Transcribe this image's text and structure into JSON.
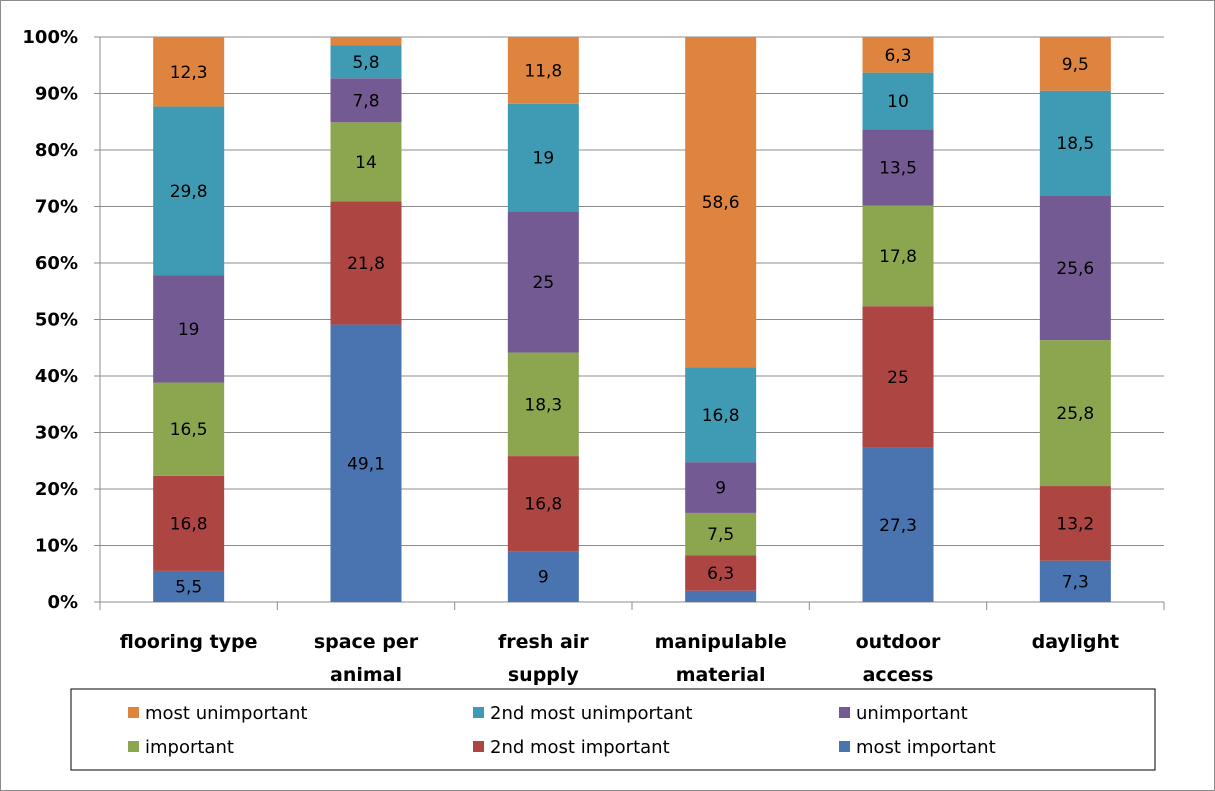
{
  "chart_data": {
    "type": "bar",
    "stacked": true,
    "percent_stacked": true,
    "title": "",
    "xlabel": "",
    "ylabel": "",
    "ylim": [
      0,
      100
    ],
    "y_ticks": [
      "0%",
      "10%",
      "20%",
      "30%",
      "40%",
      "50%",
      "60%",
      "70%",
      "80%",
      "90%",
      "100%"
    ],
    "grid": true,
    "legend_position": "bottom",
    "categories": [
      [
        "flooring type"
      ],
      [
        "space per",
        "animal"
      ],
      [
        "fresh air",
        "supply"
      ],
      [
        "manipulable",
        "material"
      ],
      [
        "outdoor",
        "access"
      ],
      [
        "daylight"
      ]
    ],
    "series": [
      {
        "name": "most important",
        "color": "#4a74b0",
        "values": [
          5.5,
          49.1,
          9,
          2,
          27.3,
          7.3
        ],
        "labels": [
          "5,5",
          "49,1",
          "9",
          "",
          "27,3",
          "7,3"
        ]
      },
      {
        "name": "2nd most important",
        "color": "#ad4543",
        "values": [
          16.8,
          21.8,
          16.8,
          6.3,
          25,
          13.2
        ],
        "labels": [
          "16,8",
          "21,8",
          "16,8",
          "6,3",
          "25",
          "13,2"
        ]
      },
      {
        "name": "important",
        "color": "#8ca650",
        "values": [
          16.5,
          14,
          18.3,
          7.5,
          17.8,
          25.8
        ],
        "labels": [
          "16,5",
          "14",
          "18,3",
          "7,5",
          "17,8",
          "25,8"
        ]
      },
      {
        "name": "unimportant",
        "color": "#735a92",
        "values": [
          19,
          7.8,
          25,
          9,
          13.5,
          25.6
        ],
        "labels": [
          "19",
          "7,8",
          "25",
          "9",
          "13,5",
          "25,6"
        ]
      },
      {
        "name": "2nd most unimportant",
        "color": "#3f9bb3",
        "values": [
          29.8,
          5.8,
          19,
          16.8,
          10,
          18.5
        ],
        "labels": [
          "29,8",
          "5,8",
          "19",
          "16,8",
          "10",
          "18,5"
        ]
      },
      {
        "name": "most unimportant",
        "color": "#de843f",
        "values": [
          12.3,
          1.5,
          11.8,
          58.6,
          6.3,
          9.5
        ],
        "labels": [
          "12,3",
          "",
          "11,8",
          "58,6",
          "6,3",
          "9,5"
        ]
      }
    ],
    "legend": [
      [
        "most unimportant",
        "2nd most unimportant",
        "unimportant"
      ],
      [
        "important",
        "2nd most important",
        "most important"
      ]
    ]
  }
}
